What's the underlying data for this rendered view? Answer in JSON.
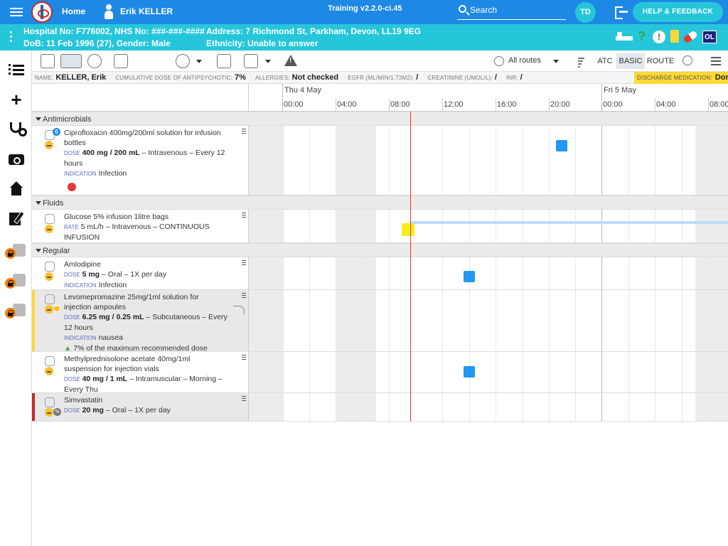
{
  "topbar": {
    "home_label": "Home",
    "user_name": "Erik KELLER",
    "version": "Training v2.2.0-ci.45",
    "search_label": "Search",
    "avatar_initials": "TD",
    "help_label": "HELP & FEEDBACK"
  },
  "patient": {
    "hospital_no": "Hospital No: F776002, NHS No: ###-###-####",
    "address": "Address: 7 Richmond St, Parkham, Devon, LL19 9EG",
    "dob": "DoB: 11 Feb 1996 (27), Gender: Male",
    "ethnicity": "Ethnicity: Unable to answer",
    "ol_badge": "OL",
    "q_icon": "?",
    "warn_icon": "!"
  },
  "toolbar": {
    "routes_label": "All routes",
    "atc_label": "ATC",
    "basic_label": "BASIC",
    "route_label": "ROUTE"
  },
  "info": {
    "name_k": "NAME:",
    "name_v": "KELLER, Erik",
    "cum_k": "CUMULATIVE DOSE OF ANTIPSYCHOTIC:",
    "cum_v": "7%",
    "allergy_k": "ALLERGIES:",
    "allergy_v": "Not checked",
    "egfr_k": "EGFR (ML/MIN/1.73M2):",
    "egfr_v": "/",
    "creat_k": "CREATININE (UMOL/L):",
    "creat_v": "/",
    "inr_k": "INR:",
    "inr_v": "/",
    "discharge_k": "DISCHARGE MEDICATION:",
    "discharge_v": "Done"
  },
  "timeline": {
    "day1": "Thu 4 May",
    "day2": "Fri 5 May",
    "hours": [
      "00:00",
      "04:00",
      "08:00",
      "12:00",
      "16:00",
      "20:00",
      "00:00",
      "04:00",
      "08:00"
    ]
  },
  "sections": {
    "antimicrobials": "Antimicrobials",
    "fluids": "Fluids",
    "regular": "Regular"
  },
  "meds": {
    "cipro": {
      "name": "Ciprofloxacin 400mg/200ml solution for infusion bottles",
      "dose_k": "DOSE",
      "dose_v": "400 mg / 200 mL",
      "dose_rest": " – Intravenous – Every 12 hours",
      "ind_k": "INDICATION",
      "ind_v": "Infection",
      "badge": "0"
    },
    "glucose": {
      "name": "Glucose 5% infusion 1litre bags",
      "rate_k": "RATE",
      "rate_v": "5 mL/h – Intravenous – CONTINUOUS INFUSION"
    },
    "amlo": {
      "name": "Amlodipine",
      "dose_k": "DOSE",
      "dose_v": "5 mg",
      "dose_rest": " – Oral – 1X per day",
      "ind_k": "INDICATION",
      "ind_v": "Infection"
    },
    "levo": {
      "name": "Levomepromazine 25mg/1ml solution for injection ampoules",
      "dose_k": "DOSE",
      "dose_v": "6.25 mg / 0.25 mL",
      "dose_rest": " – Subcutaneous – Every 12 hours",
      "ind_k": "INDICATION",
      "ind_v": "nausea",
      "warning": "7% of the maximum recommended dose"
    },
    "methyl": {
      "name": "Methylprednisolone acetate 40mg/1ml suspension for injection vials",
      "dose_k": "DOSE",
      "dose_v": "40 mg / 1 mL",
      "dose_rest": " – Intramuscular – Morning – Every Thu"
    },
    "simva": {
      "name": "Simvastatin",
      "dose_k": "DOSE",
      "dose_v": "20 mg",
      "dose_rest": " – Oral – 1X per day"
    }
  },
  "colors": {
    "topbar": "#1e88e5",
    "patientbar": "#26c6da",
    "dose_marker": "#2196f3",
    "infusion_start": "#f5ef1e",
    "now_line": "#e53935"
  }
}
